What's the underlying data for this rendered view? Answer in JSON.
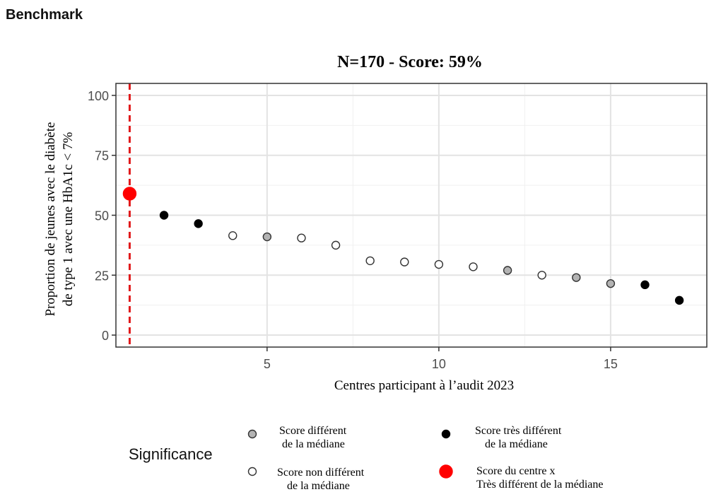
{
  "page": {
    "heading": "Benchmark"
  },
  "chart_data": {
    "type": "scatter",
    "title": "N=170  -  Score: 59%",
    "xlabel": "Centres participant à l’audit 2023",
    "ylabel_lines": [
      "Proportion de jeunes avec le diabète",
      "de type 1 avec une HbA1c < 7%"
    ],
    "xlim": [
      0.6,
      17.8
    ],
    "ylim": [
      -5,
      105
    ],
    "x_ticks": [
      5,
      10,
      15
    ],
    "y_ticks": [
      0,
      25,
      50,
      75,
      100
    ],
    "grid": true,
    "reference_line": {
      "x": 1,
      "style": "dashed",
      "color": "#e0191b"
    },
    "points": [
      {
        "x": 1,
        "y": 59,
        "category": "centre"
      },
      {
        "x": 2,
        "y": 50,
        "category": "tres_different"
      },
      {
        "x": 3,
        "y": 46.5,
        "category": "tres_different"
      },
      {
        "x": 4,
        "y": 41.5,
        "category": "non_different"
      },
      {
        "x": 5,
        "y": 41,
        "category": "different"
      },
      {
        "x": 6,
        "y": 40.5,
        "category": "non_different"
      },
      {
        "x": 7,
        "y": 37.5,
        "category": "non_different"
      },
      {
        "x": 8,
        "y": 31,
        "category": "non_different"
      },
      {
        "x": 9,
        "y": 30.5,
        "category": "non_different"
      },
      {
        "x": 10,
        "y": 29.5,
        "category": "non_different"
      },
      {
        "x": 11,
        "y": 28.5,
        "category": "non_different"
      },
      {
        "x": 12,
        "y": 27,
        "category": "different"
      },
      {
        "x": 13,
        "y": 25,
        "category": "non_different"
      },
      {
        "x": 14,
        "y": 24,
        "category": "different"
      },
      {
        "x": 15,
        "y": 21.5,
        "category": "different"
      },
      {
        "x": 16,
        "y": 21,
        "category": "tres_different"
      },
      {
        "x": 17,
        "y": 14.5,
        "category": "tres_different"
      }
    ],
    "categories": {
      "centre": {
        "fill": "#ff0000",
        "stroke": "#ff0000"
      },
      "tres_different": {
        "fill": "#000000",
        "stroke": "#000000"
      },
      "different": {
        "fill": "#b3b3b3",
        "stroke": "#333333"
      },
      "non_different": {
        "fill": "#ffffff",
        "stroke": "#333333"
      }
    },
    "legend": {
      "title": "Significance",
      "placement": "bottom",
      "items": [
        {
          "category": "different",
          "lines": [
            "Score différent",
            "de la médiane"
          ]
        },
        {
          "category": "tres_different",
          "lines": [
            "Score très différent",
            "de la médiane"
          ]
        },
        {
          "category": "non_different",
          "lines": [
            "Score non différent",
            "de la médiane"
          ]
        },
        {
          "category": "centre",
          "lines": [
            "Score du centre x",
            "Très différent de la médiane"
          ]
        }
      ]
    }
  }
}
